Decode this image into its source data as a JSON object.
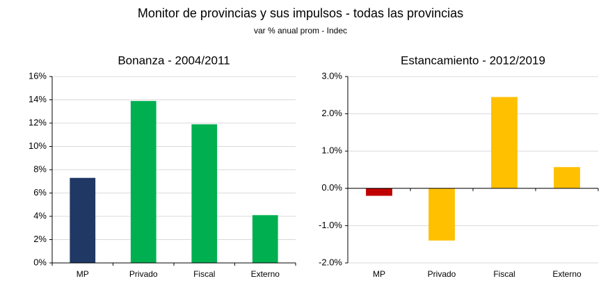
{
  "title": "Monitor de provincias y sus impulsos - todas las provincias",
  "subtitle": "var % anual prom - Indec",
  "chart_data": [
    {
      "type": "bar",
      "title": "Bonanza - 2004/2011",
      "categories": [
        "MP",
        "Privado",
        "Fiscal",
        "Externo"
      ],
      "values": [
        7.3,
        13.9,
        11.9,
        4.1
      ],
      "colors": [
        "#203864",
        "#00b050",
        "#00b050",
        "#00b050"
      ],
      "ylim": [
        0,
        16
      ],
      "yticks": [
        {
          "value": 0,
          "label": "0%"
        },
        {
          "value": 2,
          "label": "2%"
        },
        {
          "value": 4,
          "label": "4%"
        },
        {
          "value": 6,
          "label": "6%"
        },
        {
          "value": 8,
          "label": "8%"
        },
        {
          "value": 10,
          "label": "10%"
        },
        {
          "value": 12,
          "label": "12%"
        },
        {
          "value": 14,
          "label": "14%"
        },
        {
          "value": 16,
          "label": "16%"
        }
      ],
      "grid": true
    },
    {
      "type": "bar",
      "title": "Estancamiento - 2012/2019",
      "categories": [
        "MP",
        "Privado",
        "Fiscal",
        "Externo"
      ],
      "values": [
        -0.2,
        -1.4,
        2.45,
        0.57
      ],
      "colors": [
        "#c00000",
        "#ffc000",
        "#ffc000",
        "#ffc000"
      ],
      "ylim": [
        -2,
        3
      ],
      "yticks": [
        {
          "value": -2,
          "label": "-2.0%"
        },
        {
          "value": -1,
          "label": "-1.0%"
        },
        {
          "value": 0,
          "label": "0.0%"
        },
        {
          "value": 1,
          "label": "1.0%"
        },
        {
          "value": 2,
          "label": "2.0%"
        },
        {
          "value": 3,
          "label": "3.0%"
        }
      ],
      "grid": true
    }
  ]
}
